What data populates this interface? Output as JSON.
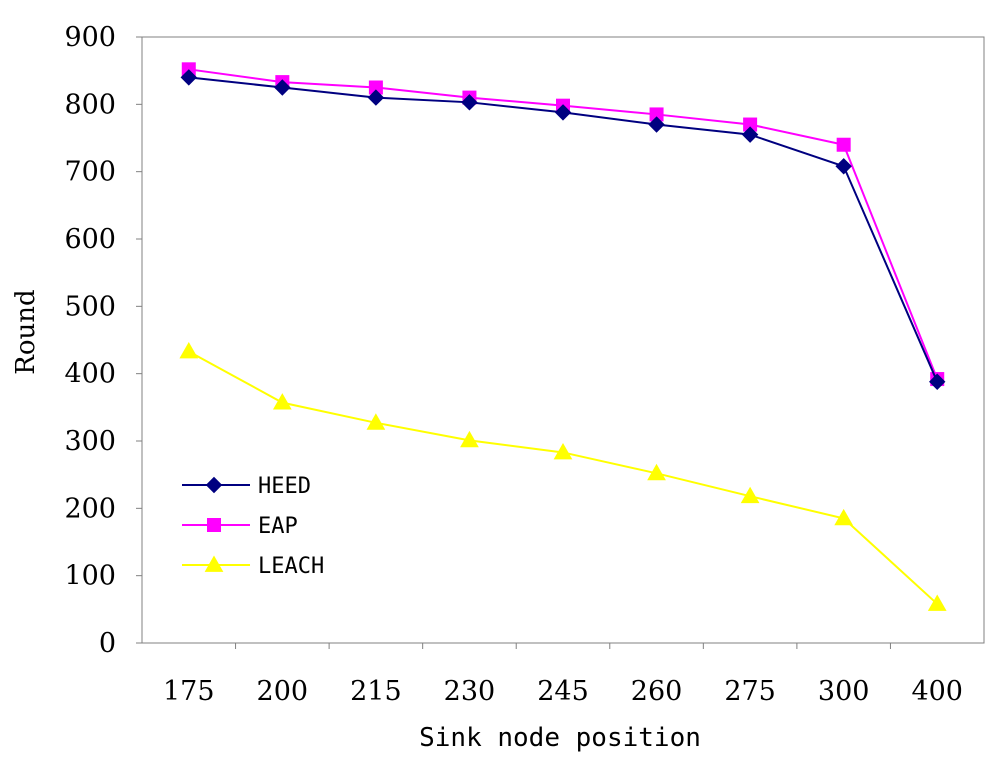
{
  "chart_data": {
    "type": "line",
    "title": "",
    "xlabel": "Sink node position",
    "ylabel": "Round",
    "categories": [
      "175",
      "200",
      "215",
      "230",
      "245",
      "260",
      "275",
      "300",
      "400"
    ],
    "ylim": [
      0,
      900
    ],
    "yticks": [
      0,
      100,
      200,
      300,
      400,
      500,
      600,
      700,
      800,
      900
    ],
    "grid": false,
    "legend_position": "left",
    "series": [
      {
        "name": "HEED",
        "color": "#000080",
        "marker": "diamond",
        "values": [
          840,
          825,
          810,
          803,
          788,
          770,
          755,
          708,
          388
        ]
      },
      {
        "name": "EAP",
        "color": "#ff00ff",
        "marker": "square",
        "values": [
          852,
          833,
          825,
          810,
          798,
          785,
          770,
          740,
          392
        ]
      },
      {
        "name": "LEACH",
        "color": "#ffff00",
        "marker": "triangle",
        "values": [
          433,
          357,
          327,
          301,
          283,
          252,
          218,
          185,
          58
        ]
      }
    ]
  }
}
